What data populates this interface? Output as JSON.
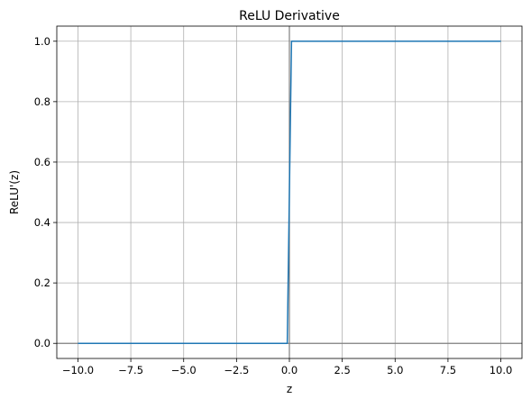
{
  "chart_data": {
    "type": "line",
    "title": "ReLU Derivative",
    "xlabel": "z",
    "ylabel": "ReLU'(z)",
    "xlim": [
      -11,
      11
    ],
    "ylim": [
      -0.05,
      1.05
    ],
    "xticks": [
      -10.0,
      -7.5,
      -5.0,
      -2.5,
      0.0,
      2.5,
      5.0,
      7.5,
      10.0
    ],
    "xtick_labels": [
      "−10.0",
      "−7.5",
      "−5.0",
      "−2.5",
      "0.0",
      "2.5",
      "5.0",
      "7.5",
      "10.0"
    ],
    "yticks": [
      0.0,
      0.2,
      0.4,
      0.6,
      0.8,
      1.0
    ],
    "ytick_labels": [
      "0.0",
      "0.2",
      "0.4",
      "0.6",
      "0.8",
      "1.0"
    ],
    "grid": true,
    "reference_lines": {
      "x": 0,
      "y": 0,
      "color": "#808080"
    },
    "series": [
      {
        "color": "#1f77b4",
        "x": [
          -10.0,
          -0.1,
          0.1,
          10.0
        ],
        "y": [
          0.0,
          0.0,
          1.0,
          1.0
        ]
      }
    ]
  }
}
